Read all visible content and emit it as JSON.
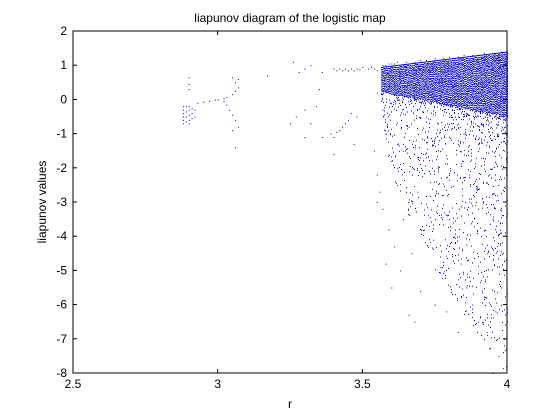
{
  "chart_data": {
    "type": "scatter",
    "title": "liapunov diagram of the logistic map",
    "xlabel": "r",
    "ylabel": "liapunov values",
    "xlim": [
      2.5,
      4
    ],
    "ylim": [
      -8,
      2
    ],
    "xticks": [
      "2.5",
      "3",
      "3.5",
      "4"
    ],
    "yticks": [
      "2",
      "1",
      "0",
      "-1",
      "-2",
      "-3",
      "-4",
      "-5",
      "-6",
      "-7",
      "-8"
    ],
    "grid": false,
    "marker_color": "#0000cc",
    "series": [
      {
        "points": [
          [
            2.88,
            -0.2
          ],
          [
            2.88,
            -0.3
          ],
          [
            2.88,
            -0.4
          ],
          [
            2.88,
            -0.5
          ],
          [
            2.88,
            -0.6
          ],
          [
            2.88,
            -0.7
          ],
          [
            2.89,
            -0.2
          ],
          [
            2.89,
            -0.35
          ],
          [
            2.89,
            -0.5
          ],
          [
            2.89,
            -0.65
          ],
          [
            2.9,
            -0.2
          ],
          [
            2.9,
            -0.3
          ],
          [
            2.9,
            -0.45
          ],
          [
            2.9,
            -0.6
          ],
          [
            2.9,
            -0.7
          ],
          [
            2.91,
            -0.25
          ],
          [
            2.91,
            -0.4
          ],
          [
            2.91,
            -0.55
          ],
          [
            2.92,
            -0.3
          ],
          [
            2.92,
            -0.5
          ],
          [
            2.9,
            0.65
          ],
          [
            2.9,
            0.45
          ],
          [
            2.9,
            0.3
          ],
          [
            2.93,
            -0.1
          ],
          [
            2.95,
            -0.07
          ],
          [
            2.97,
            -0.04
          ],
          [
            2.99,
            -0.01
          ],
          [
            3.0,
            0.0
          ],
          [
            3.02,
            0.03
          ],
          [
            3.03,
            0.07
          ],
          [
            3.05,
            0.15
          ],
          [
            3.06,
            0.25
          ],
          [
            3.02,
            -0.05
          ],
          [
            3.03,
            -0.15
          ],
          [
            3.04,
            -0.3
          ],
          [
            3.05,
            -0.45
          ],
          [
            3.06,
            -0.6
          ],
          [
            3.07,
            -0.8
          ],
          [
            3.05,
            0.65
          ],
          [
            3.06,
            0.5
          ],
          [
            3.07,
            0.35
          ],
          [
            3.06,
            -1.4
          ],
          [
            3.05,
            -0.9
          ],
          [
            3.07,
            0.6
          ],
          [
            3.17,
            0.7
          ],
          [
            3.26,
            1.1
          ],
          [
            3.28,
            0.8
          ],
          [
            3.3,
            0.9
          ],
          [
            3.32,
            1.0
          ],
          [
            3.3,
            -0.3
          ],
          [
            3.32,
            -0.7
          ],
          [
            3.3,
            -1.1
          ],
          [
            3.25,
            -0.7
          ],
          [
            3.27,
            -0.5
          ],
          [
            3.34,
            -0.2
          ],
          [
            3.36,
            -1.1
          ],
          [
            3.35,
            0.3
          ],
          [
            3.36,
            0.8
          ],
          [
            3.4,
            0.9
          ],
          [
            3.42,
            0.9
          ],
          [
            3.44,
            0.9
          ],
          [
            3.46,
            0.9
          ],
          [
            3.48,
            0.9
          ],
          [
            3.5,
            0.95
          ],
          [
            3.41,
            0.85
          ],
          [
            3.43,
            0.85
          ],
          [
            3.45,
            0.85
          ],
          [
            3.47,
            0.85
          ],
          [
            3.49,
            0.88
          ],
          [
            3.39,
            -1.0
          ],
          [
            3.4,
            -1.1
          ],
          [
            3.41,
            -0.95
          ],
          [
            3.42,
            -0.9
          ],
          [
            3.43,
            -0.8
          ],
          [
            3.44,
            -0.7
          ],
          [
            3.45,
            -0.6
          ],
          [
            3.46,
            -0.4
          ],
          [
            3.47,
            -1.3
          ],
          [
            3.4,
            -1.6
          ],
          [
            3.48,
            -0.5
          ],
          [
            3.52,
            0.9
          ],
          [
            3.53,
            0.95
          ],
          [
            3.54,
            0.9
          ],
          [
            3.55,
            0.85
          ],
          [
            3.54,
            -1.5
          ],
          [
            3.55,
            -2.2
          ],
          [
            3.55,
            -3.0
          ],
          [
            3.56,
            -2.7
          ],
          [
            3.55,
            0.2
          ],
          [
            3.57,
            1.0
          ],
          [
            3.58,
            1.0
          ],
          [
            3.59,
            1.05
          ],
          [
            3.6,
            1.05
          ],
          [
            3.61,
            1.05
          ],
          [
            3.62,
            1.1
          ],
          [
            3.57,
            0.8
          ],
          [
            3.59,
            0.7
          ],
          [
            3.61,
            0.5
          ],
          [
            3.63,
            0.3
          ],
          [
            3.57,
            -0.3
          ],
          [
            3.58,
            -1.0
          ],
          [
            3.6,
            -1.8
          ],
          [
            3.62,
            -2.5
          ],
          [
            3.57,
            -3.2
          ],
          [
            3.59,
            -3.8
          ],
          [
            3.61,
            -4.3
          ],
          [
            3.63,
            -5.0
          ],
          [
            3.58,
            -4.8
          ],
          [
            3.6,
            -5.5
          ],
          [
            3.62,
            -2.0
          ],
          [
            3.64,
            -1.5
          ],
          [
            3.66,
            -6.3
          ],
          [
            3.65,
            1.1
          ],
          [
            3.68,
            1.1
          ],
          [
            3.7,
            1.15
          ],
          [
            3.72,
            1.15
          ],
          [
            3.75,
            1.2
          ],
          [
            3.78,
            1.2
          ],
          [
            3.8,
            1.25
          ],
          [
            3.83,
            1.25
          ],
          [
            3.85,
            1.3
          ],
          [
            3.88,
            1.3
          ],
          [
            3.9,
            1.3
          ],
          [
            3.92,
            1.35
          ],
          [
            3.95,
            1.35
          ],
          [
            3.98,
            1.4
          ],
          [
            4.0,
            1.4
          ],
          [
            3.7,
            0.3
          ],
          [
            3.72,
            -0.5
          ],
          [
            3.74,
            -1.2
          ],
          [
            3.76,
            -2.0
          ],
          [
            3.78,
            -2.8
          ],
          [
            3.8,
            -3.5
          ],
          [
            3.82,
            -4.2
          ],
          [
            3.84,
            -4.8
          ],
          [
            3.86,
            -5.5
          ],
          [
            3.88,
            -6.0
          ],
          [
            3.9,
            -6.5
          ],
          [
            3.92,
            -7.0
          ],
          [
            3.95,
            -8.0
          ],
          [
            3.97,
            -7.5
          ],
          [
            3.99,
            -7.0
          ],
          [
            4.0,
            -6.5
          ],
          [
            3.7,
            -5.6
          ],
          [
            3.68,
            -6.5
          ],
          [
            3.75,
            -6.0
          ],
          [
            3.79,
            -6.2
          ],
          [
            3.83,
            -6.8
          ],
          [
            3.93,
            -6.8
          ],
          [
            3.96,
            -6.2
          ],
          [
            3.98,
            -5.5
          ],
          [
            3.85,
            -1.0
          ],
          [
            3.87,
            -2.2
          ],
          [
            3.89,
            -3.1
          ],
          [
            3.91,
            -4.0
          ],
          [
            3.93,
            -4.5
          ],
          [
            3.95,
            -3.5
          ],
          [
            3.97,
            -2.5
          ],
          [
            3.99,
            -1.5
          ],
          [
            3.81,
            0.5
          ],
          [
            3.9,
            0.2
          ],
          [
            3.96,
            -0.5
          ],
          [
            3.73,
            -3.7
          ],
          [
            3.67,
            -4.5
          ],
          [
            3.69,
            -2.7
          ],
          [
            3.77,
            -4.9
          ],
          [
            3.64,
            -3.5
          ],
          [
            3.66,
            -0.8
          ],
          [
            3.71,
            -1.6
          ]
        ]
      }
    ],
    "dense_regions": [
      {
        "x_from": 3.565,
        "x_to": 4.0,
        "y_top_from": 0.95,
        "y_top_to": 1.4,
        "y_bottom_from": -0.4,
        "y_bottom_to": -8.0
      }
    ]
  }
}
